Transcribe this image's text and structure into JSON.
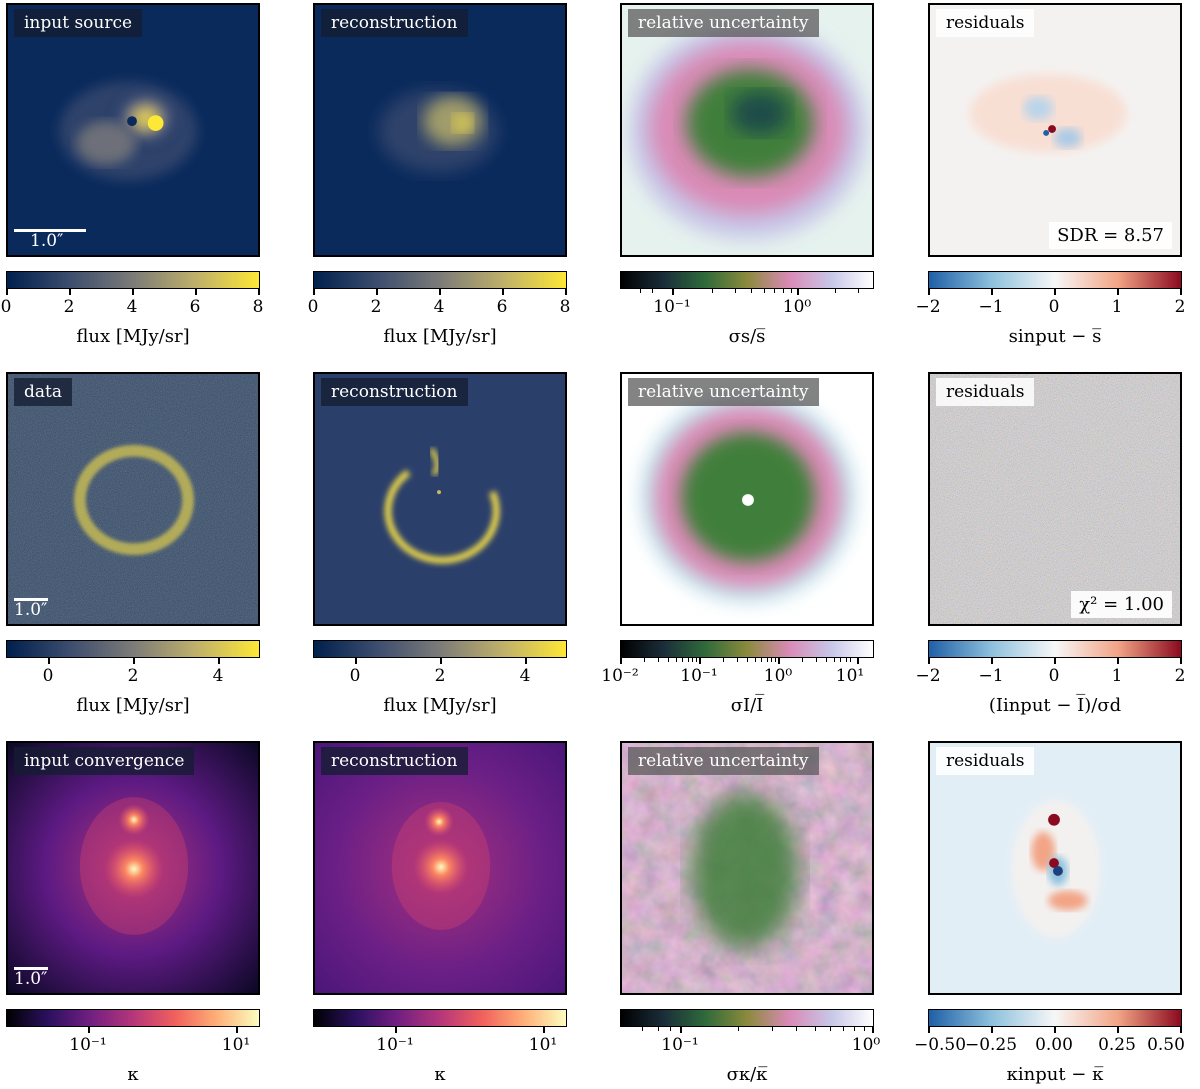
{
  "rows": [
    {
      "panels": [
        {
          "label": "input source",
          "colorbar_label": "flux [MJy/sr]",
          "ticks": [
            "0",
            "2",
            "4",
            "6",
            "8"
          ],
          "scalebar": "1.0″"
        },
        {
          "label": "reconstruction",
          "colorbar_label": "flux [MJy/sr]",
          "ticks": [
            "0",
            "2",
            "4",
            "6",
            "8"
          ]
        },
        {
          "label": "relative uncertainty",
          "colorbar_label": "σs/s̅",
          "ticks": [
            "10⁻¹",
            "10⁰"
          ]
        },
        {
          "label": "residuals",
          "colorbar_label": "sinput − s̅",
          "ticks": [
            "−2",
            "−1",
            "0",
            "1",
            "2"
          ],
          "stat": "SDR = 8.57"
        }
      ]
    },
    {
      "panels": [
        {
          "label": "data",
          "colorbar_label": "flux [MJy/sr]",
          "ticks": [
            "0",
            "2",
            "4"
          ],
          "scalebar": "1.0″"
        },
        {
          "label": "reconstruction",
          "colorbar_label": "flux [MJy/sr]",
          "ticks": [
            "0",
            "2",
            "4"
          ]
        },
        {
          "label": "relative uncertainty",
          "colorbar_label": "σI/I̅",
          "ticks": [
            "10⁻²",
            "10⁻¹",
            "10⁰",
            "10¹"
          ]
        },
        {
          "label": "residuals",
          "colorbar_label": "(Iinput − I̅)/σd",
          "ticks": [
            "−2",
            "−1",
            "0",
            "1",
            "2"
          ],
          "stat": "χ² = 1.00"
        }
      ]
    },
    {
      "panels": [
        {
          "label": "input convergence",
          "colorbar_label": "κ",
          "ticks": [
            "10⁻¹",
            "10¹"
          ],
          "scalebar": "1.0″"
        },
        {
          "label": "reconstruction",
          "colorbar_label": "κ",
          "ticks": [
            "10⁻¹",
            "10¹"
          ]
        },
        {
          "label": "relative uncertainty",
          "colorbar_label": "σκ/κ̅",
          "ticks": [
            "10⁻¹",
            "10⁰"
          ]
        },
        {
          "label": "residuals",
          "colorbar_label": "κinput − κ̅",
          "ticks": [
            "−0.50",
            "−0.25",
            "0.00",
            "0.25",
            "0.50"
          ]
        }
      ]
    }
  ],
  "colors": {
    "cividis_low": "#00204d",
    "cividis_mid": "#7c7b78",
    "cividis_high": "#fde737",
    "rdbu_low": "#1f5fa6",
    "rdbu_mid": "#f7f7f7",
    "rdbu_high": "#8b0a1f",
    "magma_low": "#000004",
    "magma_mid": "#b5367a",
    "magma_high": "#fcfdbf"
  }
}
